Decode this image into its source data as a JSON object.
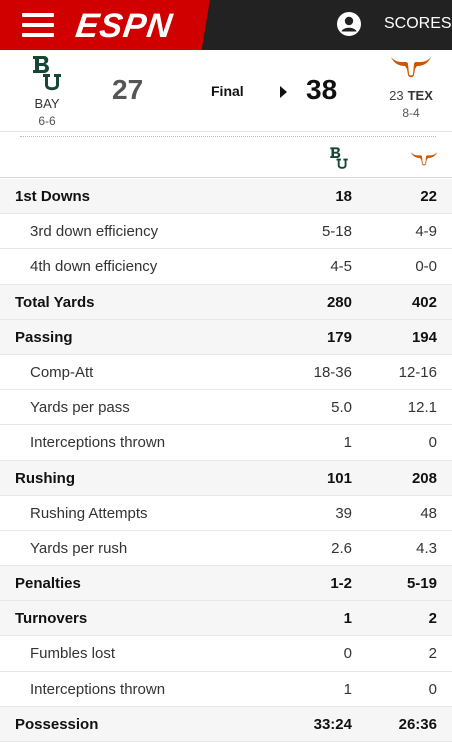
{
  "header": {
    "logo_text": "ESPN",
    "scores_label": "SCORES",
    "colors": {
      "red": "#d00000",
      "dark": "#222222"
    },
    "menu_icon": "hamburger-menu-icon",
    "account_icon": "account-icon"
  },
  "game": {
    "away": {
      "abbr": "BAY",
      "record": "6-6",
      "score": "27",
      "logo_icon": "baylor-logo-icon",
      "color": "#154734"
    },
    "home": {
      "rank": "23",
      "abbr": "TEX",
      "record": "8-4",
      "score": "38",
      "logo_icon": "texas-longhorn-logo-icon",
      "color": "#cc5500"
    },
    "status": "Final"
  },
  "stats": [
    {
      "label": "1st Downs",
      "away": "18",
      "home": "22",
      "main": true
    },
    {
      "label": "3rd down efficiency",
      "away": "5-18",
      "home": "4-9",
      "main": false
    },
    {
      "label": "4th down efficiency",
      "away": "4-5",
      "home": "0-0",
      "main": false
    },
    {
      "label": "Total Yards",
      "away": "280",
      "home": "402",
      "main": true
    },
    {
      "label": "Passing",
      "away": "179",
      "home": "194",
      "main": true
    },
    {
      "label": "Comp-Att",
      "away": "18-36",
      "home": "12-16",
      "main": false
    },
    {
      "label": "Yards per pass",
      "away": "5.0",
      "home": "12.1",
      "main": false
    },
    {
      "label": "Interceptions thrown",
      "away": "1",
      "home": "0",
      "main": false
    },
    {
      "label": "Rushing",
      "away": "101",
      "home": "208",
      "main": true
    },
    {
      "label": "Rushing Attempts",
      "away": "39",
      "home": "48",
      "main": false
    },
    {
      "label": "Yards per rush",
      "away": "2.6",
      "home": "4.3",
      "main": false
    },
    {
      "label": "Penalties",
      "away": "1-2",
      "home": "5-19",
      "main": true
    },
    {
      "label": "Turnovers",
      "away": "1",
      "home": "2",
      "main": true
    },
    {
      "label": "Fumbles lost",
      "away": "0",
      "home": "2",
      "main": false
    },
    {
      "label": "Interceptions thrown",
      "away": "1",
      "home": "0",
      "main": false
    },
    {
      "label": "Possession",
      "away": "33:24",
      "home": "26:36",
      "main": true
    }
  ]
}
